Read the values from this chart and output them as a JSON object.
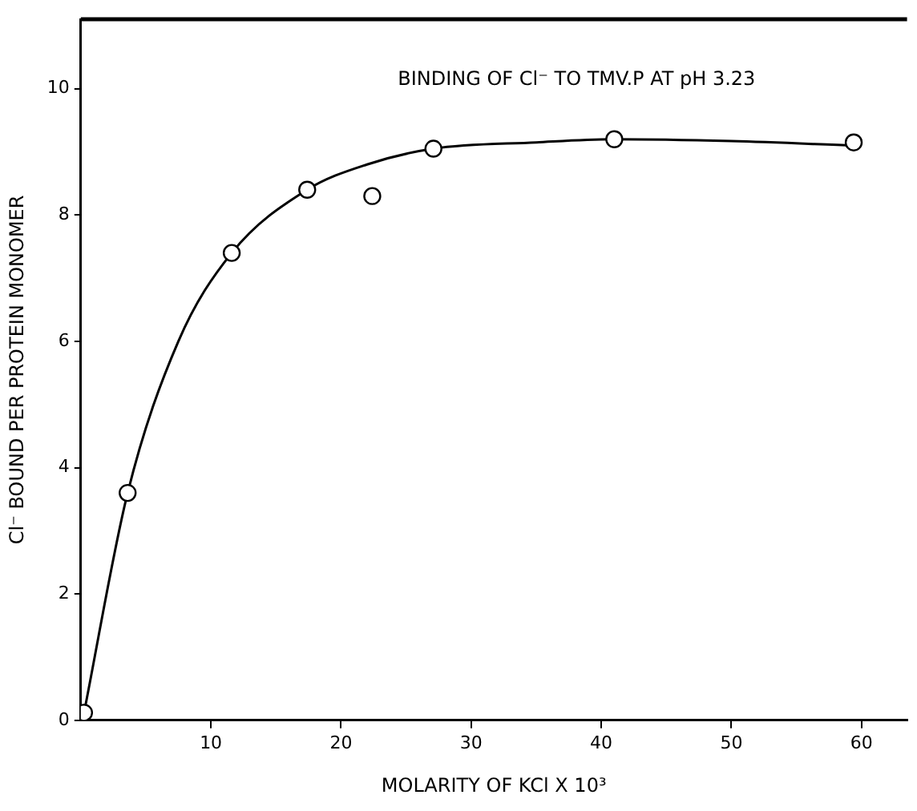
{
  "chart_data": {
    "type": "scatter",
    "title": "BINDING OF Cl⁻ TO TMV.P AT pH 3.23",
    "xlabel": "MOLARITY OF KCl X 10³",
    "ylabel": "Cl⁻ BOUND PER PROTEIN MONOMER",
    "xlim": [
      0,
      63.5
    ],
    "xticks": [
      10,
      20,
      30,
      40,
      50,
      60
    ],
    "ylim": [
      0,
      11.1
    ],
    "yticks": [
      0,
      2,
      4,
      6,
      8,
      10
    ],
    "grid": false,
    "legend": false,
    "marker": "circle",
    "series": [
      {
        "color": "#000000",
        "x": [
          0.25,
          3.6,
          11.6,
          17.4,
          22.4,
          27.1,
          41,
          59.4
        ],
        "values": [
          0.12,
          3.6,
          7.4,
          8.4,
          8.3,
          9.05,
          9.2,
          9.15
        ]
      },
      {
        "type": "line",
        "color": "#000000",
        "marker": "none",
        "line_style": "solid",
        "x": [
          0.25,
          3.6,
          7.5,
          11.6,
          17.4,
          22,
          27.1,
          35,
          41,
          50,
          59.4
        ],
        "values": [
          0.12,
          3.6,
          6.0,
          7.4,
          8.4,
          8.8,
          9.05,
          9.15,
          9.2,
          9.17,
          9.1
        ]
      }
    ]
  }
}
